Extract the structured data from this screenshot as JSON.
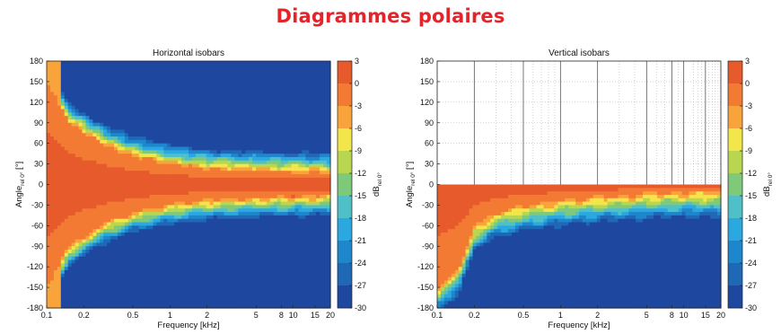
{
  "page_title": "Diagrammes polaires",
  "colors": {
    "title": "#e3242b",
    "scale": [
      "#e65a2c",
      "#f27a33",
      "#f9a43a",
      "#f3e64a",
      "#b8d650",
      "#7fc97a",
      "#4fc0c8",
      "#2aa8df",
      "#1e86cc",
      "#1f68b6",
      "#1e48a0"
    ]
  },
  "chart_data": [
    {
      "type": "heatmap",
      "title": "Horizontal isobars",
      "xlabel": "Frequency [kHz]",
      "ylabel": "Angle",
      "ylabel_sub": "rel 0°",
      "ylabel_unit": "[°]",
      "x_scale": "log",
      "xlim": [
        0.1,
        20
      ],
      "x_ticks": [
        0.1,
        0.2,
        0.5,
        1,
        2,
        5,
        8,
        10,
        15,
        20
      ],
      "x_tick_labels": [
        "0.1",
        "0.2",
        "0.5",
        "1",
        "2",
        "5",
        "8",
        "10",
        "15",
        "20"
      ],
      "ylim": [
        -180,
        180
      ],
      "y_ticks": [
        180,
        150,
        120,
        90,
        60,
        30,
        0,
        -30,
        -60,
        -90,
        -120,
        -150,
        -180
      ],
      "colorbar": {
        "label": "dB",
        "label_sub": "rel 0°",
        "ticks": [
          3,
          0,
          -3,
          -6,
          -9,
          -12,
          -15,
          -18,
          -21,
          -24,
          -27,
          -30
        ],
        "range": [
          3,
          -30
        ]
      },
      "grid": false,
      "beamwidth_half_angle_deg_by_freq": [
        {
          "f": 0.1,
          "deg": 150
        },
        {
          "f": 0.15,
          "deg": 90
        },
        {
          "f": 0.2,
          "deg": 75
        },
        {
          "f": 0.3,
          "deg": 55
        },
        {
          "f": 0.5,
          "deg": 40
        },
        {
          "f": 1,
          "deg": 28
        },
        {
          "f": 2,
          "deg": 22
        },
        {
          "f": 5,
          "deg": 18
        },
        {
          "f": 10,
          "deg": 17
        },
        {
          "f": 20,
          "deg": 15
        }
      ]
    },
    {
      "type": "heatmap",
      "title": "Vertical isobars",
      "xlabel": "Frequency [kHz]",
      "ylabel": "Angle",
      "ylabel_sub": "rel 0°",
      "ylabel_unit": "[°]",
      "x_scale": "log",
      "xlim": [
        0.1,
        20
      ],
      "x_ticks": [
        0.1,
        0.2,
        0.5,
        1,
        2,
        5,
        8,
        10,
        15,
        20
      ],
      "x_tick_labels": [
        "0.1",
        "0.2",
        "0.5",
        "1",
        "2",
        "5",
        "8",
        "10",
        "15",
        "20"
      ],
      "ylim": [
        -180,
        180
      ],
      "y_ticks": [
        180,
        150,
        120,
        90,
        60,
        30,
        0,
        -30,
        -60,
        -90,
        -120,
        -150,
        -180
      ],
      "colorbar": {
        "label": "dB",
        "label_sub": "rel 0°",
        "ticks": [
          3,
          0,
          -3,
          -6,
          -9,
          -12,
          -15,
          -18,
          -21,
          -24,
          -27,
          -30
        ],
        "range": [
          3,
          -30
        ]
      },
      "grid": true,
      "data_region": "lower half only (0 to -180°)",
      "rolloff_angle_deg_by_freq": [
        {
          "f": 0.1,
          "deg": 150
        },
        {
          "f": 0.15,
          "deg": 120
        },
        {
          "f": 0.2,
          "deg": 60
        },
        {
          "f": 0.3,
          "deg": 40
        },
        {
          "f": 0.5,
          "deg": 30
        },
        {
          "f": 1,
          "deg": 22
        },
        {
          "f": 2,
          "deg": 17
        },
        {
          "f": 5,
          "deg": 12
        },
        {
          "f": 10,
          "deg": 10
        },
        {
          "f": 20,
          "deg": 9
        }
      ]
    }
  ]
}
